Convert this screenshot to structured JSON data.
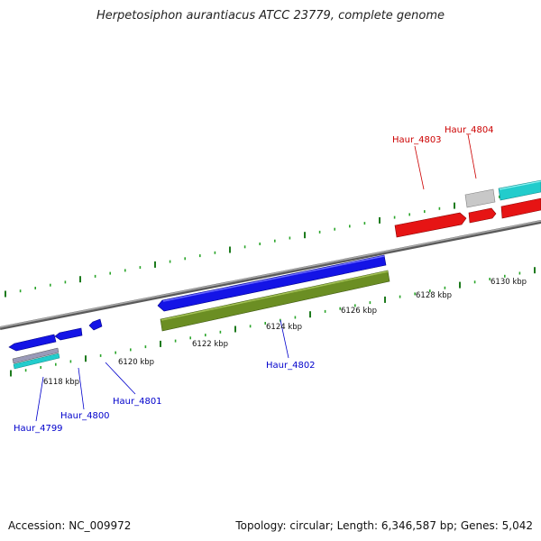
{
  "title": "Herpetosiphon aurantiacus ATCC 23779, complete genome",
  "footer": {
    "accession": "Accession: NC_009972",
    "summary": "Topology: circular; Length: 6,346,587 bp; Genes: 5,042"
  },
  "colors": {
    "backbone": "#7f7f7f",
    "tick_dark": "#1e7b1e",
    "tick_light": "#2aa52a",
    "gene_blue": "#1414e6",
    "gene_red": "#e61414",
    "gene_cyan": "#22cccc",
    "gene_olive": "#6b8e23",
    "gene_gray": "#c8c8c8",
    "label_blue": "#0000cc",
    "label_red": "#cc0000"
  },
  "kbp_labels": [
    "6118 kbp",
    "6120 kbp",
    "6122 kbp",
    "6124 kbp",
    "6126 kbp",
    "6128 kbp",
    "6130 kbp"
  ],
  "gene_labels": [
    {
      "text": "Haur_4799",
      "color": "label_blue"
    },
    {
      "text": "Haur_4800",
      "color": "label_blue"
    },
    {
      "text": "Haur_4801",
      "color": "label_blue"
    },
    {
      "text": "Haur_4802",
      "color": "label_blue"
    },
    {
      "text": "Haur_4803",
      "color": "label_red"
    },
    {
      "text": "Haur_4804",
      "color": "label_red"
    }
  ]
}
